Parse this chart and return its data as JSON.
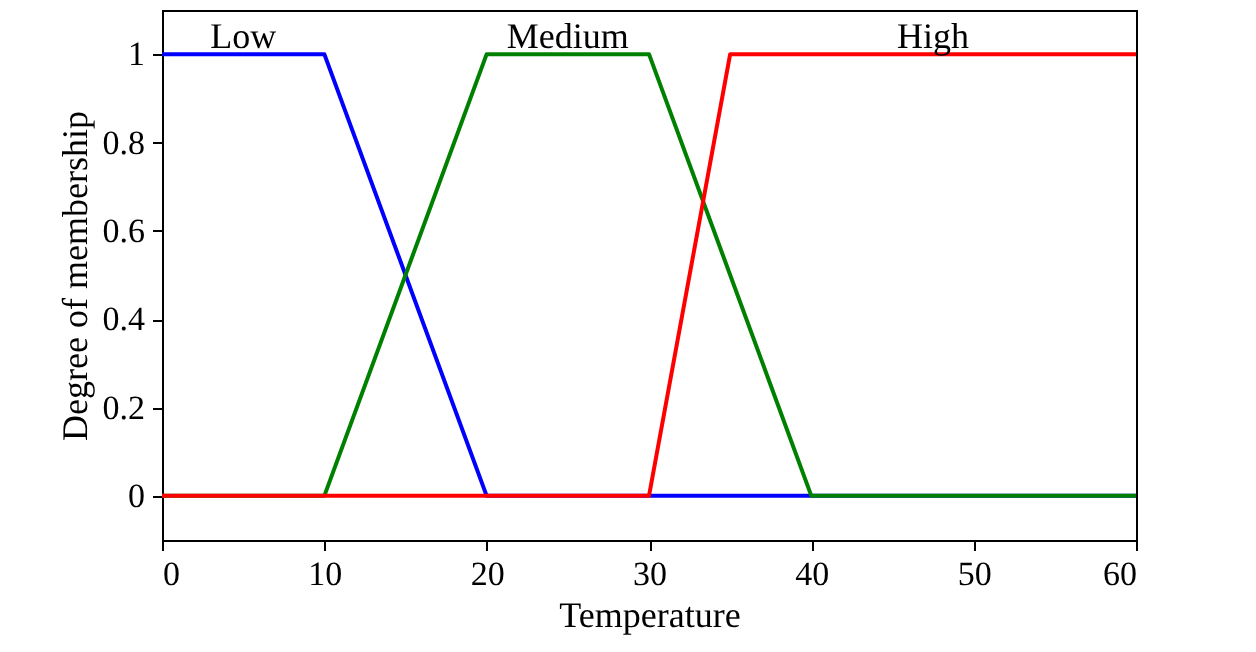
{
  "chart_data": {
    "type": "line",
    "xlabel": "Temperature",
    "ylabel": "Degree of membership",
    "xlim": [
      0,
      60
    ],
    "xticks": [
      0,
      10,
      20,
      30,
      40,
      50,
      60
    ],
    "ylim": [
      -0.1,
      1.1
    ],
    "yticks": [
      0,
      0.2,
      0.4,
      0.6,
      0.8,
      1
    ],
    "grid": false,
    "marker": "none",
    "line_style": "solid",
    "series": [
      {
        "name": "Low",
        "color": "#0000ff",
        "x": [
          0,
          10,
          20,
          60
        ],
        "values": [
          1,
          1,
          0,
          0
        ]
      },
      {
        "name": "Medium",
        "color": "#008000",
        "x": [
          0,
          10,
          20,
          30,
          40,
          60
        ],
        "values": [
          0,
          0,
          1,
          1,
          0,
          0
        ]
      },
      {
        "name": "High",
        "color": "#ff0000",
        "x": [
          0,
          30,
          35,
          60
        ],
        "values": [
          0,
          0,
          1,
          1
        ]
      }
    ]
  }
}
